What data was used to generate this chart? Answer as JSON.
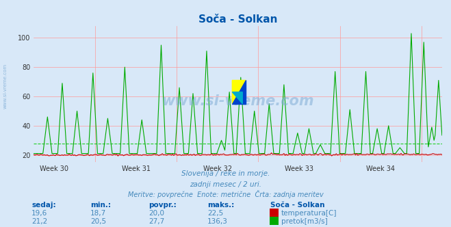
{
  "title": "Soča - Solkan",
  "bg_color": "#d8e8f8",
  "plot_bg_color": "#d8e8f8",
  "ylim": [
    15,
    108
  ],
  "yticks": [
    20,
    40,
    60,
    80,
    100
  ],
  "week_labels": [
    "Week 30",
    "Week 31",
    "Week 32",
    "Week 33",
    "Week 34"
  ],
  "week_tick_pos": [
    18,
    90,
    162,
    234,
    306
  ],
  "week_vline_pos": [
    54,
    126,
    198,
    270,
    342
  ],
  "temp_color": "#cc0000",
  "flow_color": "#00aa00",
  "flow_avg": 27.7,
  "subtitle1": "Slovenija / reke in morje.",
  "subtitle2": "zadnji mesec / 2 uri.",
  "subtitle3": "Meritve: povprečne  Enote: metrične  Črta: zadnja meritev",
  "watermark": "www.si-vreme.com",
  "label_sedaj": "sedaj:",
  "label_min": "min.:",
  "label_povpr": "povpr.:",
  "label_maks": "maks.:",
  "label_title": "Soča - Solkan",
  "label_temp": "temperatura[C]",
  "label_flow": "pretok[m3/s]",
  "val_temp_sedaj": "19,6",
  "val_temp_min": "18,7",
  "val_temp_povpr": "20,0",
  "val_temp_maks": "22,5",
  "val_flow_sedaj": "21,2",
  "val_flow_min": "20,5",
  "val_flow_povpr": "27,7",
  "val_flow_maks": "136,3",
  "grid_color": "#ff9999",
  "avg_line_color": "#00cc00"
}
